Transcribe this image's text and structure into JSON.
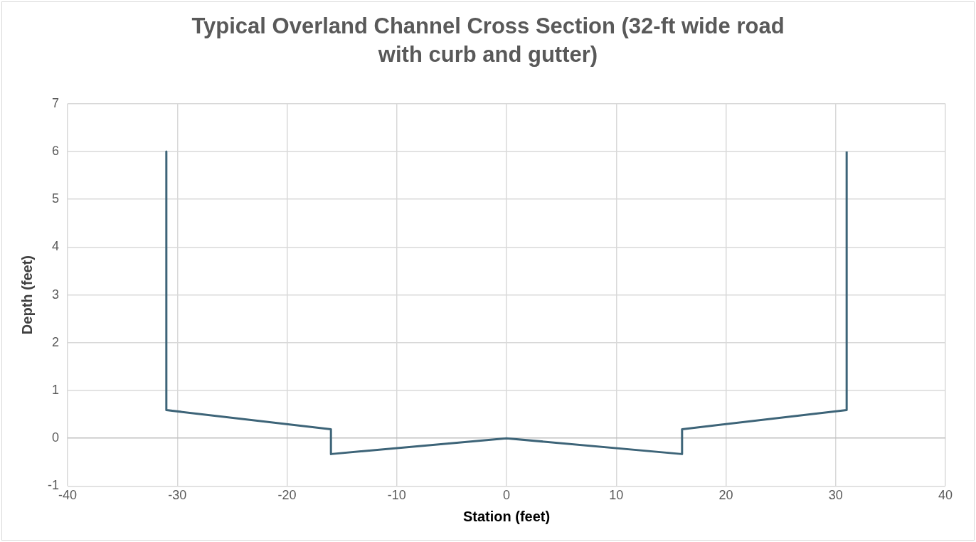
{
  "chart_data": {
    "type": "line",
    "title": "Typical Overland Channel Cross Section (32-ft wide road with curb and gutter)",
    "xlabel": "Station (feet)",
    "ylabel": "Depth (feet)",
    "series": [
      {
        "color": "#3d6478",
        "x": [
          -31,
          -31,
          -16,
          -16,
          0,
          16,
          16,
          31,
          31
        ],
        "values": [
          6,
          0.59,
          0.19,
          -0.33,
          0,
          -0.33,
          0.19,
          0.59,
          6
        ]
      }
    ],
    "xlim": [
      -40,
      40
    ],
    "xticks": [
      -40,
      -30,
      -20,
      -10,
      0,
      10,
      20,
      30,
      40
    ],
    "ylim": [
      -1,
      7
    ],
    "yticks": [
      -1,
      0,
      1,
      2,
      3,
      4,
      5,
      6,
      7
    ],
    "grid": true,
    "legend": false,
    "marker": "none",
    "line_style": "solid"
  }
}
